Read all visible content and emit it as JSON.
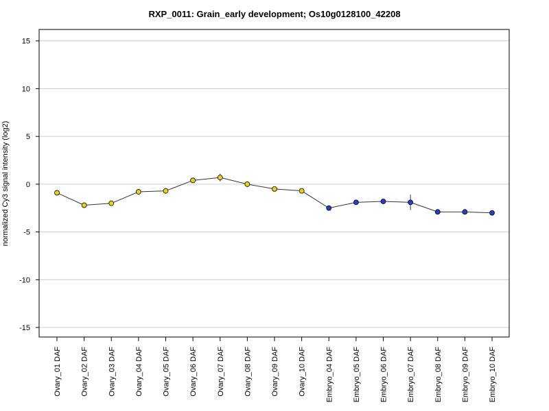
{
  "chart_data": {
    "type": "line",
    "title": "RXP_0011: Grain_early development; Os10g0128100_42208",
    "xlabel": "",
    "ylabel": "normalized Cy3 signal intensity (log2)",
    "ylim": [
      -16,
      16.2
    ],
    "yticks": [
      "15",
      "10",
      "5",
      "0",
      "-5",
      "-10",
      "-15"
    ],
    "ytick_values": [
      15,
      10,
      5,
      0,
      -5,
      -10,
      -15
    ],
    "grid": true,
    "legend": "none",
    "categories": [
      "Ovary_01 DAF",
      "Ovary_02 DAF",
      "Ovary_03 DAF",
      "Ovary_04 DAF",
      "Ovary_05 DAF",
      "Ovary_06 DAF",
      "Ovary_07 DAF",
      "Ovary_08 DAF",
      "Ovary_09 DAF",
      "Ovary_10 DAF",
      "Embryo_04 DAF",
      "Embryo_05 DAF",
      "Embryo_06 DAF",
      "Embryo_07 DAF",
      "Embryo_08 DAF",
      "Embryo_09 DAF",
      "Embryo_10 DAF"
    ],
    "values": [
      -0.9,
      -2.2,
      -2.0,
      -0.8,
      -0.7,
      0.4,
      0.7,
      0.0,
      -0.5,
      -0.7,
      -2.5,
      -1.9,
      -1.8,
      -1.9,
      -2.9,
      -2.9,
      -3.0
    ],
    "errors": [
      0.15,
      0.15,
      0.15,
      0.15,
      0.3,
      0.15,
      0.4,
      0.3,
      0.15,
      0.15,
      0.15,
      0.15,
      0.15,
      0.8,
      0.1,
      0.1,
      0.1
    ],
    "point_colors": [
      "#e8d21e",
      "#e8d21e",
      "#e8d21e",
      "#e8d21e",
      "#e8d21e",
      "#e8d21e",
      "#e8d21e",
      "#e8d21e",
      "#e8d21e",
      "#e8d21e",
      "#2a3fbf",
      "#2a3fbf",
      "#2a3fbf",
      "#2a3fbf",
      "#2a3fbf",
      "#2a3fbf",
      "#2a3fbf"
    ],
    "line_color": "#333333",
    "grid_color": "#cccccc"
  }
}
